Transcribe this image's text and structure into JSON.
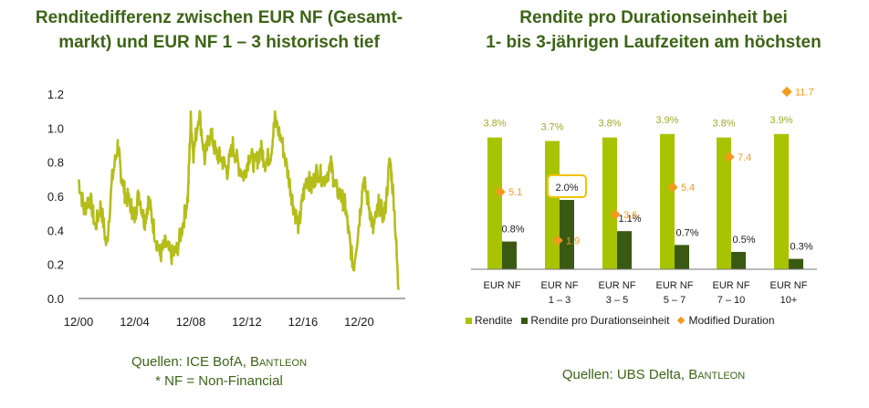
{
  "left": {
    "title_line1": "Renditedifferenz zwischen EUR NF (Gesamt-",
    "title_line2": "markt) und EUR NF 1 – 3 historisch tief",
    "source_line1_prefix": "Quellen: ICE BofA, ",
    "source_line1_brand": "Bantleon",
    "source_line2": "* NF = Non-Financial"
  },
  "right": {
    "title_line1": "Rendite pro Durationseinheit bei",
    "title_line2": "1- bis 3-jährigen Laufzeiten am höchsten",
    "source_prefix": "Quellen: UBS Delta, ",
    "source_brand": "Bantleon",
    "legend": {
      "rendite": "Rendite",
      "rendite_pro_duration": "Rendite pro Durationseinheit",
      "modified_duration": "Modified Duration"
    }
  },
  "colors": {
    "title": "#3c6416",
    "line": "#b5bd1a",
    "rendite": "#a8c400",
    "rendite_pro_duration": "#3a5a14",
    "modified_duration": "#f39a1e",
    "highlight": "#f2c200"
  },
  "chart_data": [
    {
      "type": "line",
      "title": "Renditedifferenz zwischen EUR NF (Gesamtmarkt) und EUR NF 1 – 3 historisch tief",
      "xlabel": "",
      "ylabel": "",
      "ylim": [
        0.0,
        1.2
      ],
      "yticks": [
        "0.0",
        "0.2",
        "0.4",
        "0.6",
        "0.8",
        "1.0",
        "1.2"
      ],
      "xticks": [
        "12/00",
        "12/04",
        "12/08",
        "12/12",
        "12/16",
        "12/20"
      ],
      "xrange": [
        2000.0,
        2022.9
      ],
      "grid": false,
      "series": [
        {
          "x": [
            2000.0,
            2000.4,
            2000.8,
            2001.2,
            2001.6,
            2002.0,
            2002.4,
            2002.8,
            2003.0,
            2003.3,
            2003.7,
            2004.0,
            2004.3,
            2004.7,
            2005.0,
            2005.4,
            2005.8,
            2006.2,
            2006.6,
            2007.0,
            2007.4,
            2007.8,
            2008.0,
            2008.2,
            2008.6,
            2009.0,
            2009.4,
            2009.8,
            2010.2,
            2010.6,
            2011.0,
            2011.4,
            2011.8,
            2012.2,
            2012.6,
            2013.0,
            2013.3,
            2013.7,
            2014.0,
            2014.5,
            2015.0,
            2015.3,
            2015.7,
            2016.0,
            2016.3,
            2016.6,
            2017.0,
            2017.5,
            2018.0,
            2018.3,
            2018.7,
            2019.0,
            2019.3,
            2019.6,
            2020.0,
            2020.3,
            2020.7,
            2021.0,
            2021.4,
            2021.8,
            2022.2,
            2022.5,
            2022.8
          ],
          "y": [
            0.7,
            0.52,
            0.6,
            0.42,
            0.55,
            0.3,
            0.7,
            0.9,
            0.75,
            0.62,
            0.55,
            0.48,
            0.62,
            0.45,
            0.58,
            0.4,
            0.25,
            0.32,
            0.25,
            0.28,
            0.42,
            0.6,
            1.05,
            0.85,
            1.1,
            0.82,
            0.98,
            0.85,
            0.82,
            0.75,
            0.9,
            0.78,
            0.72,
            0.85,
            0.78,
            0.88,
            0.8,
            0.85,
            1.05,
            0.92,
            0.7,
            0.55,
            0.42,
            0.6,
            0.72,
            0.65,
            0.75,
            0.7,
            0.78,
            0.65,
            0.6,
            0.55,
            0.35,
            0.18,
            0.45,
            0.7,
            0.55,
            0.4,
            0.55,
            0.48,
            0.82,
            0.55,
            0.05
          ]
        }
      ]
    },
    {
      "type": "bar",
      "title": "Rendite pro Durationseinheit bei 1- bis 3-jährigen Laufzeiten am höchsten",
      "categories": [
        [
          "EUR NF",
          ""
        ],
        [
          "EUR NF",
          "1 – 3"
        ],
        [
          "EUR NF",
          "3 – 5"
        ],
        [
          "EUR NF",
          "5 – 7"
        ],
        [
          "EUR NF",
          "7 – 10"
        ],
        [
          "EUR NF",
          "10+"
        ]
      ],
      "legend_position": "bottom",
      "series": [
        {
          "name": "Rendite",
          "values": [
            3.8,
            3.7,
            3.8,
            3.9,
            3.8,
            3.9
          ],
          "labels": [
            "3.8%",
            "3.7%",
            "3.8%",
            "3.9%",
            "3.8%",
            "3.9%"
          ]
        },
        {
          "name": "Rendite pro Durationseinheit",
          "values": [
            0.8,
            2.0,
            1.1,
            0.7,
            0.5,
            0.3
          ],
          "labels": [
            "0.8%",
            "2.0%",
            "1.1%",
            "0.7%",
            "0.5%",
            "0.3%"
          ]
        },
        {
          "name": "Modified Duration",
          "values": [
            5.1,
            1.9,
            3.6,
            5.4,
            7.4,
            11.7
          ],
          "labels": [
            "5.1",
            "1.9",
            "3.6",
            "5.4",
            "7.4",
            "11.7"
          ]
        }
      ],
      "highlight_index": 1
    }
  ]
}
